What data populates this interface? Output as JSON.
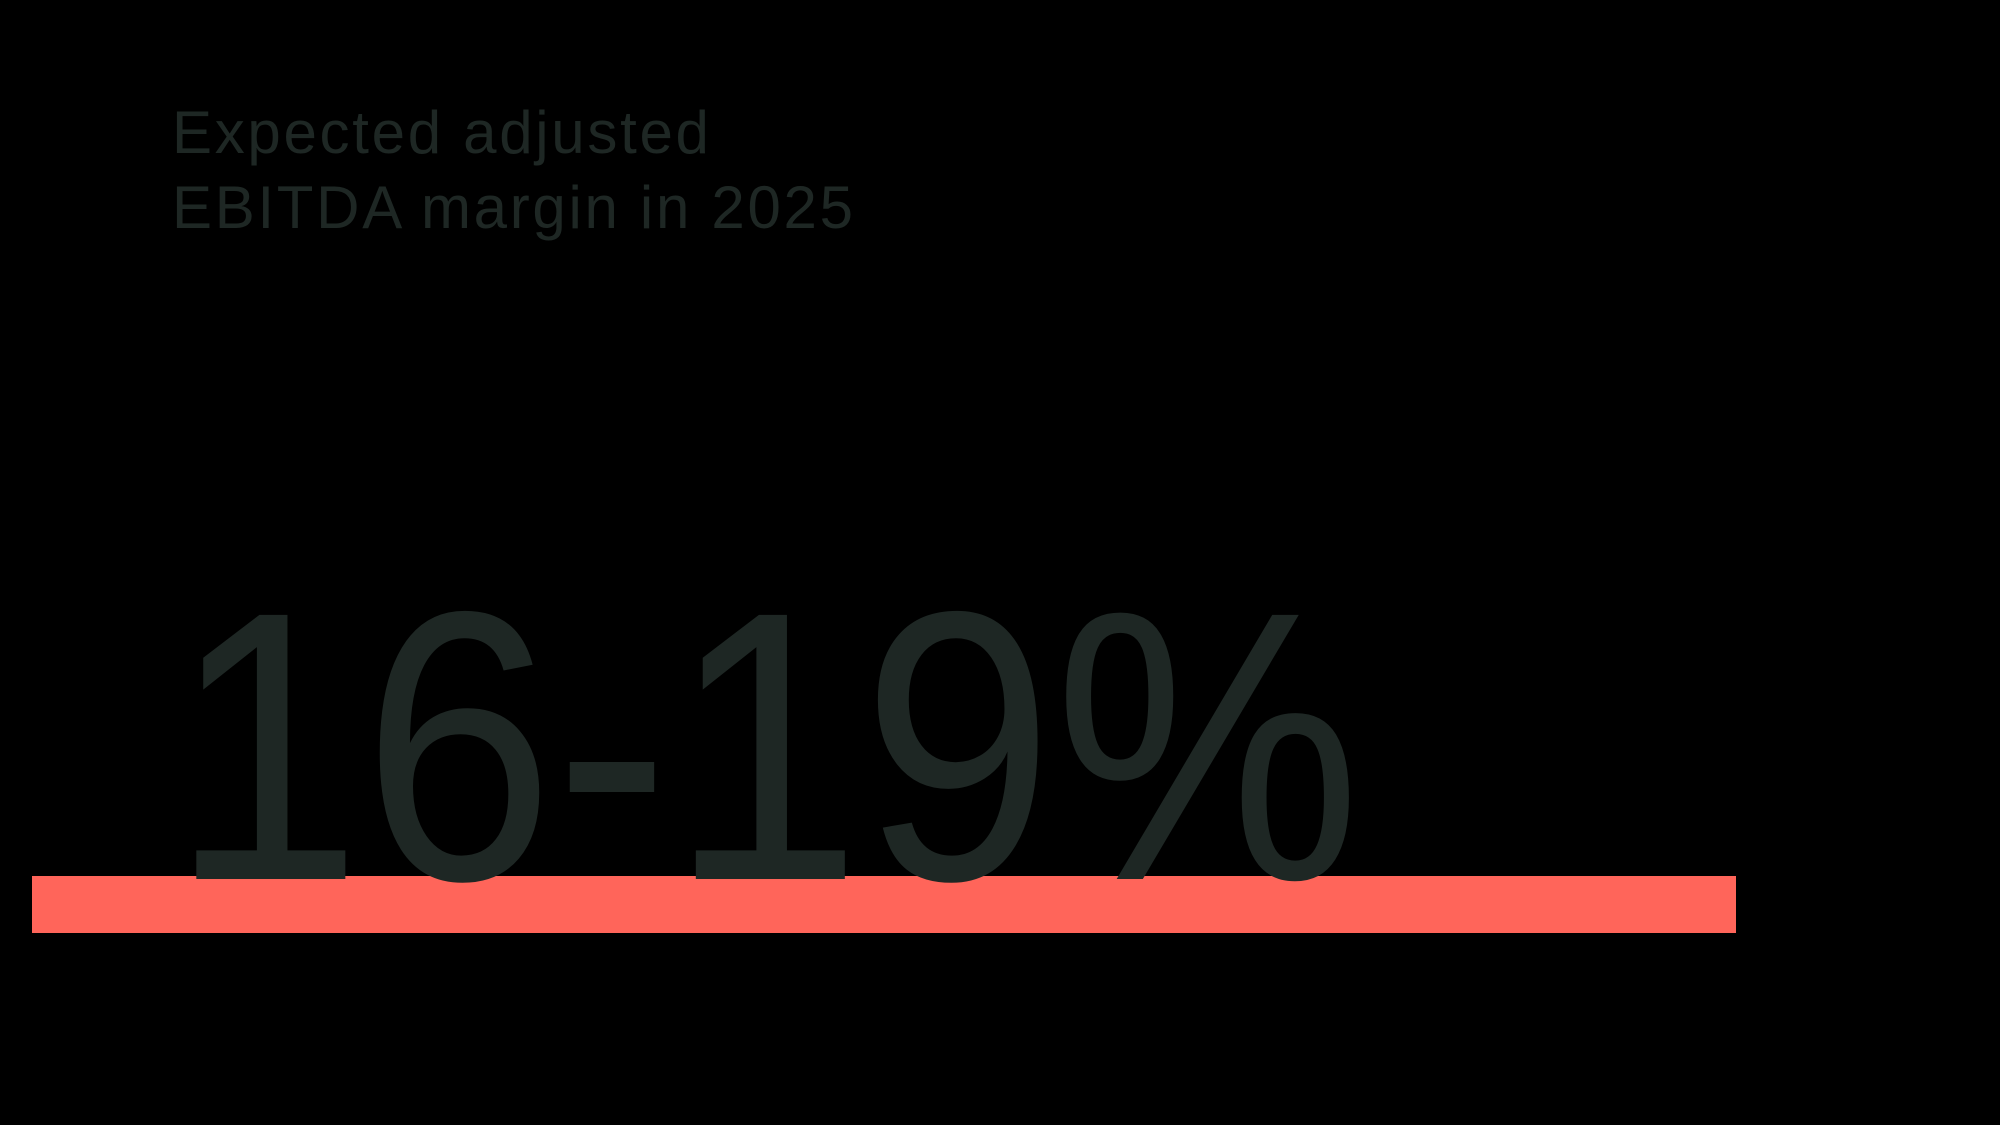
{
  "theme": {
    "bg": "#000000",
    "ink": "#1e2724",
    "accent": "#ff655a"
  },
  "title": {
    "line1": "Expected adjusted",
    "line2": "EBITDA margin in 2025"
  },
  "stat": {
    "value": "16-19%"
  },
  "chart_data": {
    "type": "big_number",
    "title": "Expected adjusted EBITDA margin in 2025",
    "value": "16-19%",
    "value_min": 16,
    "value_max": 19,
    "unit": "%",
    "accent_color": "#ff655a",
    "text_color": "#1e2724",
    "background_color": "#000000",
    "notes": "Single KPI statistic callout; coral underline bar behind the large figure"
  }
}
